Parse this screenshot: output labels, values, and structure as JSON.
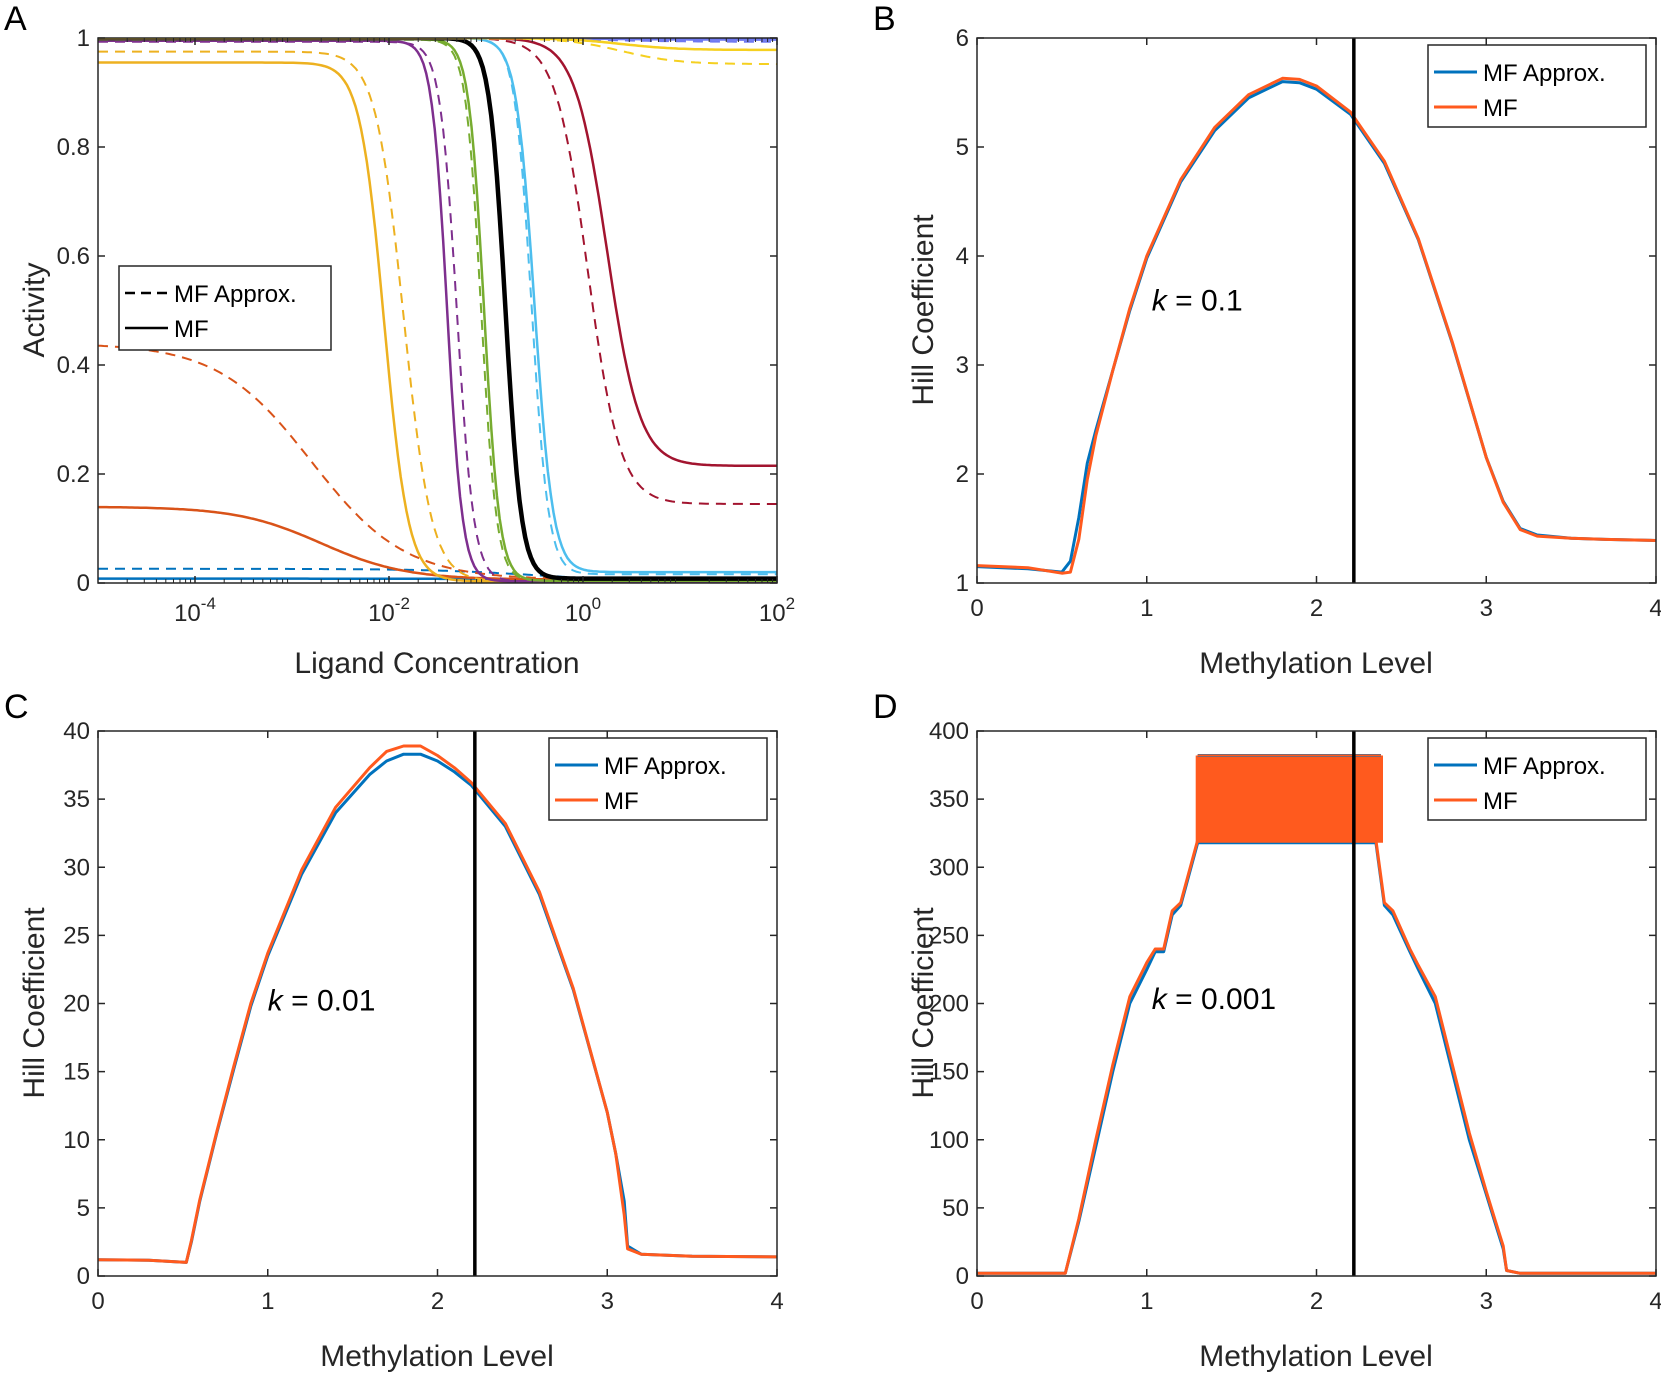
{
  "colors": {
    "blue": "#0072BD",
    "orange": "#D95319",
    "orange_bright": "#FF5A1E",
    "yellow": "#EDB120",
    "purple": "#7E2F8E",
    "green": "#77AC30",
    "cyan": "#4DBEEE",
    "maroon": "#A2142F",
    "periwinkle": "#6E78F0",
    "gold": "#F5D020",
    "black": "#000000"
  },
  "chart_data": [
    {
      "panel": "A",
      "type": "line",
      "xscale": "log",
      "xlim": [
        1e-05,
        100
      ],
      "ylim": [
        0,
        1
      ],
      "xticks": [
        -4,
        -2,
        0,
        2
      ],
      "xtick_labels": [
        {
          "base": "10",
          "exp": "-4"
        },
        {
          "base": "10",
          "exp": "-2"
        },
        {
          "base": "10",
          "exp": "0"
        },
        {
          "base": "10",
          "exp": "2"
        }
      ],
      "yticks": [
        0,
        0.2,
        0.4,
        0.6,
        0.8,
        1
      ],
      "ytick_labels": [
        "0",
        "0.2",
        "0.4",
        "0.6",
        "0.8",
        "1"
      ],
      "xlabel": "Ligand Concentration",
      "ylabel": "Activity",
      "legend": {
        "placement": "center-left",
        "entries": [
          {
            "label": "MF Approx.",
            "style": "dashed"
          },
          {
            "label": "MF",
            "style": "solid"
          }
        ]
      },
      "series": [
        {
          "name": "MF Approx. (blue)",
          "color": "#0072BD",
          "style": "dashed",
          "width": 2,
          "a0": 0.026,
          "a1": 0.003,
          "logK": -0.5,
          "n": 0.8
        },
        {
          "name": "MF (blue)",
          "color": "#0072BD",
          "style": "solid",
          "width": 2.5,
          "a0": 0.008,
          "a1": 0.004,
          "logK": -0.5,
          "n": 1
        },
        {
          "name": "MF Approx. (orange)",
          "color": "#D95319",
          "style": "dashed",
          "width": 2,
          "a0": 0.44,
          "a1": 0.006,
          "logK": -2.8,
          "n": 0.9
        },
        {
          "name": "MF (orange)",
          "color": "#D95319",
          "style": "solid",
          "width": 2.5,
          "a0": 0.14,
          "a1": 0.006,
          "logK": -2.7,
          "n": 1
        },
        {
          "name": "MF Approx. (yellow)",
          "color": "#EDB120",
          "style": "dashed",
          "width": 2,
          "a0": 0.975,
          "a1": 0.003,
          "logK": -1.85,
          "n": 3
        },
        {
          "name": "MF (yellow)",
          "color": "#EDB120",
          "style": "solid",
          "width": 2.5,
          "a0": 0.955,
          "a1": 0.003,
          "logK": -2.05,
          "n": 3.5
        },
        {
          "name": "MF Approx. (purple)",
          "color": "#7E2F8E",
          "style": "dashed",
          "width": 2,
          "a0": 0.993,
          "a1": 0.003,
          "logK": -1.3,
          "n": 5
        },
        {
          "name": "MF (purple)",
          "color": "#7E2F8E",
          "style": "solid",
          "width": 2.5,
          "a0": 0.995,
          "a1": 0.003,
          "logK": -1.4,
          "n": 5.5
        },
        {
          "name": "MF Approx. (green)",
          "color": "#77AC30",
          "style": "dashed",
          "width": 2,
          "a0": 0.997,
          "a1": 0.004,
          "logK": -1.05,
          "n": 5.5
        },
        {
          "name": "MF (green)",
          "color": "#77AC30",
          "style": "solid",
          "width": 2.5,
          "a0": 0.998,
          "a1": 0.004,
          "logK": -1.02,
          "n": 5.5
        },
        {
          "name": "MF (black)",
          "color": "#000000",
          "style": "solid",
          "width": 4.5,
          "a0": 1.0,
          "a1": 0.008,
          "logK": -0.8,
          "n": 5.3
        },
        {
          "name": "MF Approx. (cyan)",
          "color": "#4DBEEE",
          "style": "dashed",
          "width": 2,
          "a0": 1.0,
          "a1": 0.016,
          "logK": -0.53,
          "n": 5
        },
        {
          "name": "MF (cyan)",
          "color": "#4DBEEE",
          "style": "solid",
          "width": 2.5,
          "a0": 1.0,
          "a1": 0.02,
          "logK": -0.5,
          "n": 4.6
        },
        {
          "name": "MF Approx. (maroon)",
          "color": "#A2142F",
          "style": "dashed",
          "width": 2,
          "a0": 1.0,
          "a1": 0.145,
          "logK": 0.05,
          "n": 2.6
        },
        {
          "name": "MF (maroon)",
          "color": "#A2142F",
          "style": "solid",
          "width": 2.5,
          "a0": 1.0,
          "a1": 0.215,
          "logK": 0.25,
          "n": 2.6
        },
        {
          "name": "MF Approx. (periwinkle)",
          "color": "#6E78F0",
          "style": "dashed",
          "width": 2,
          "a0": 1.0,
          "a1": 0.993,
          "logK": 0.2,
          "n": 1
        },
        {
          "name": "MF (periwinkle)",
          "color": "#6E78F0",
          "style": "solid",
          "width": 2.5,
          "a0": 1.0,
          "a1": 0.997,
          "logK": 0.2,
          "n": 1
        },
        {
          "name": "MF Approx. (gold)",
          "color": "#F5D020",
          "style": "dashed",
          "width": 2,
          "a0": 1.0,
          "a1": 0.952,
          "logK": 0.4,
          "n": 1.5
        },
        {
          "name": "MF (gold)",
          "color": "#F5D020",
          "style": "solid",
          "width": 2.5,
          "a0": 1.0,
          "a1": 0.978,
          "logK": 0.4,
          "n": 1.5
        }
      ]
    },
    {
      "panel": "B",
      "type": "line",
      "xlim": [
        0,
        4
      ],
      "ylim": [
        1,
        6
      ],
      "xticks": [
        0,
        1,
        2,
        3,
        4
      ],
      "xtick_labels": [
        "0",
        "1",
        "2",
        "3",
        "4"
      ],
      "yticks": [
        1,
        2,
        3,
        4,
        5,
        6
      ],
      "ytick_labels": [
        "1",
        "2",
        "3",
        "4",
        "5",
        "6"
      ],
      "xlabel": "Methylation Level",
      "ylabel": "Hill Coefficient",
      "annotation": {
        "var": "k",
        "text": " = 0.1",
        "at": [
          1.03,
          3.5
        ]
      },
      "vline": 2.22,
      "legend": {
        "placement": "top-right",
        "entries": [
          {
            "label": "MF Approx.",
            "color": "#0072BD"
          },
          {
            "label": "MF",
            "color": "#FF5A1E"
          }
        ]
      },
      "series": [
        {
          "name": "MF Approx.",
          "color": "#0072BD",
          "width": 3,
          "x": [
            0,
            0.3,
            0.5,
            0.55,
            0.6,
            0.65,
            0.7,
            0.8,
            0.9,
            1.0,
            1.2,
            1.4,
            1.6,
            1.8,
            1.9,
            2.0,
            2.2,
            2.4,
            2.6,
            2.8,
            3.0,
            3.1,
            3.2,
            3.3,
            3.5,
            3.7,
            4.0
          ],
          "y": [
            1.15,
            1.13,
            1.1,
            1.2,
            1.6,
            2.1,
            2.4,
            2.95,
            3.5,
            3.98,
            4.68,
            5.15,
            5.45,
            5.6,
            5.59,
            5.53,
            5.3,
            4.85,
            4.15,
            3.2,
            2.15,
            1.75,
            1.5,
            1.44,
            1.41,
            1.4,
            1.39
          ]
        },
        {
          "name": "MF",
          "color": "#FF5A1E",
          "width": 3,
          "x": [
            0,
            0.3,
            0.5,
            0.55,
            0.6,
            0.65,
            0.7,
            0.8,
            0.9,
            1.0,
            1.2,
            1.4,
            1.6,
            1.8,
            1.9,
            2.0,
            2.2,
            2.4,
            2.6,
            2.8,
            3.0,
            3.1,
            3.2,
            3.3,
            3.5,
            3.7,
            4.0
          ],
          "y": [
            1.16,
            1.14,
            1.09,
            1.1,
            1.4,
            1.95,
            2.35,
            2.95,
            3.52,
            4.0,
            4.7,
            5.18,
            5.48,
            5.63,
            5.62,
            5.56,
            5.32,
            4.87,
            4.16,
            3.21,
            2.15,
            1.74,
            1.49,
            1.43,
            1.41,
            1.4,
            1.39
          ]
        }
      ]
    },
    {
      "panel": "C",
      "type": "line",
      "xlim": [
        0,
        4
      ],
      "ylim": [
        0,
        40
      ],
      "xticks": [
        0,
        1,
        2,
        3,
        4
      ],
      "xtick_labels": [
        "0",
        "1",
        "2",
        "3",
        "4"
      ],
      "yticks": [
        0,
        5,
        10,
        15,
        20,
        25,
        30,
        35,
        40
      ],
      "ytick_labels": [
        "0",
        "5",
        "10",
        "15",
        "20",
        "25",
        "30",
        "35",
        "40"
      ],
      "xlabel": "Methylation Level",
      "ylabel": "Hill Coefficient",
      "annotation": {
        "var": "k",
        "text": " = 0.01",
        "at": [
          1.0,
          19.5
        ]
      },
      "vline": 2.22,
      "legend": {
        "placement": "top-right",
        "entries": [
          {
            "label": "MF Approx.",
            "color": "#0072BD"
          },
          {
            "label": "MF",
            "color": "#FF5A1E"
          }
        ]
      },
      "series": [
        {
          "name": "MF Approx.",
          "color": "#0072BD",
          "width": 3,
          "x": [
            0,
            0.3,
            0.52,
            0.55,
            0.6,
            0.7,
            0.8,
            0.9,
            1.0,
            1.2,
            1.4,
            1.6,
            1.7,
            1.8,
            1.9,
            2.0,
            2.1,
            2.2,
            2.4,
            2.6,
            2.8,
            3.0,
            3.05,
            3.1,
            3.12,
            3.2,
            3.5,
            4.0
          ],
          "y": [
            1.2,
            1.15,
            1.0,
            2.5,
            5.5,
            10.5,
            15.2,
            19.8,
            23.5,
            29.5,
            34,
            36.8,
            37.8,
            38.3,
            38.3,
            37.8,
            37.0,
            36.0,
            33.0,
            28.0,
            21.0,
            12.0,
            9.0,
            5.5,
            2.2,
            1.6,
            1.45,
            1.4
          ]
        },
        {
          "name": "MF",
          "color": "#FF5A1E",
          "width": 3,
          "x": [
            0,
            0.3,
            0.52,
            0.55,
            0.6,
            0.7,
            0.8,
            0.9,
            1.0,
            1.2,
            1.4,
            1.6,
            1.7,
            1.8,
            1.9,
            2.0,
            2.1,
            2.2,
            2.4,
            2.6,
            2.8,
            3.0,
            3.05,
            3.1,
            3.12,
            3.2,
            3.5,
            4.0
          ],
          "y": [
            1.2,
            1.15,
            1.0,
            2.6,
            5.6,
            10.6,
            15.4,
            20.0,
            23.7,
            29.8,
            34.4,
            37.3,
            38.5,
            38.9,
            38.9,
            38.2,
            37.3,
            36.2,
            33.2,
            28.2,
            21.1,
            12.0,
            9.0,
            4.5,
            2.0,
            1.6,
            1.45,
            1.4
          ]
        }
      ]
    },
    {
      "panel": "D",
      "type": "line",
      "xlim": [
        0,
        4
      ],
      "ylim": [
        0,
        400
      ],
      "xticks": [
        0,
        1,
        2,
        3,
        4
      ],
      "xtick_labels": [
        "0",
        "1",
        "2",
        "3",
        "4"
      ],
      "yticks": [
        0,
        50,
        100,
        150,
        200,
        250,
        300,
        350,
        400
      ],
      "ytick_labels": [
        "0",
        "50",
        "100",
        "150",
        "200",
        "250",
        "300",
        "350",
        "400"
      ],
      "xlabel": "Methylation Level",
      "ylabel": "Hill Coefficient",
      "annotation": {
        "var": "k",
        "text": " = 0.001",
        "at": [
          1.03,
          196
        ]
      },
      "vline": 2.22,
      "legend": {
        "placement": "top-right",
        "entries": [
          {
            "label": "MF Approx.",
            "color": "#0072BD"
          },
          {
            "label": "MF",
            "color": "#FF5A1E"
          }
        ]
      },
      "series": [
        {
          "name": "MF Approx.",
          "color": "#0072BD",
          "width": 3,
          "x": [
            0,
            0.3,
            0.52,
            0.6,
            0.7,
            0.8,
            0.9,
            1.0,
            1.05,
            1.1,
            1.15,
            1.2,
            1.3,
            2.35,
            2.4,
            2.45,
            2.55,
            2.6,
            2.7,
            2.8,
            2.9,
            3.0,
            3.05,
            3.1,
            3.12,
            3.2,
            3.5,
            4.0
          ],
          "y": [
            2,
            2,
            2,
            40,
            95,
            150,
            200,
            225,
            238,
            238,
            265,
            272,
            318,
            318,
            272,
            265,
            238,
            225,
            200,
            150,
            100,
            60,
            40,
            20,
            4,
            2,
            2,
            2
          ]
        },
        {
          "name": "MF",
          "color": "#FF5A1E",
          "width": 3,
          "x": [
            0,
            0.3,
            0.52,
            0.6,
            0.7,
            0.8,
            0.9,
            1.0,
            1.05,
            1.1,
            1.15,
            1.2,
            1.3,
            2.35,
            2.4,
            2.45,
            2.55,
            2.6,
            2.7,
            2.8,
            2.9,
            3.0,
            3.05,
            3.1,
            3.12,
            3.2,
            3.5,
            4.0
          ],
          "y": [
            2,
            2,
            2,
            42,
            100,
            155,
            205,
            230,
            240,
            240,
            268,
            274,
            320,
            320,
            274,
            268,
            240,
            228,
            205,
            155,
            105,
            62,
            42,
            22,
            4,
            2,
            2,
            2
          ]
        }
      ],
      "plateau": {
        "x_start": 1.3,
        "x_end": 2.38,
        "low": 318,
        "high": 382
      }
    }
  ]
}
